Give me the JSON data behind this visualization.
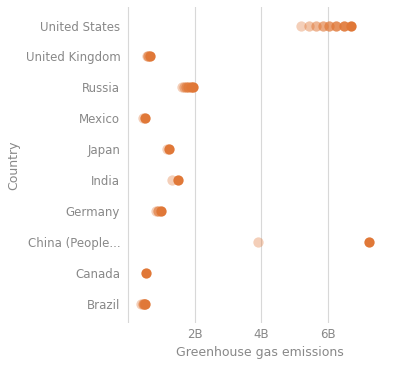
{
  "title": "",
  "xlabel": "Greenhouse gas emissions",
  "ylabel": "Country",
  "countries": [
    "United States",
    "United Kingdom",
    "Russia",
    "Mexico",
    "Japan",
    "India",
    "Germany",
    "China (People...",
    "Canada",
    "Brazil"
  ],
  "dot_color_solid": "#e07838",
  "dot_size": 55,
  "background_color": "#ffffff",
  "grid_color": "#d8d8d8",
  "data": {
    "United States": [
      5200000000,
      5450000000,
      5650000000,
      5850000000,
      6050000000,
      6250000000,
      6500000000,
      6700000000
    ],
    "United Kingdom": [
      560000000,
      600000000,
      660000000
    ],
    "Russia": [
      1600000000,
      1680000000,
      1730000000,
      1800000000,
      1870000000,
      1950000000
    ],
    "Mexico": [
      430000000,
      490000000
    ],
    "Japan": [
      1150000000,
      1230000000
    ],
    "India": [
      1300000000,
      1480000000
    ],
    "Germany": [
      830000000,
      890000000,
      980000000
    ],
    "China (People...": [
      3900000000,
      7250000000
    ],
    "Canada": [
      530000000
    ],
    "Brazil": [
      380000000,
      430000000,
      470000000,
      510000000
    ]
  },
  "xlim": [
    -100000000,
    8000000000
  ],
  "xticks": [
    0,
    2000000000,
    4000000000,
    6000000000
  ],
  "xtick_labels": [
    "",
    "2B",
    "4B",
    "6B"
  ],
  "label_fontsize": 9,
  "tick_fontsize": 8.5,
  "ytick_fontsize": 8.5
}
